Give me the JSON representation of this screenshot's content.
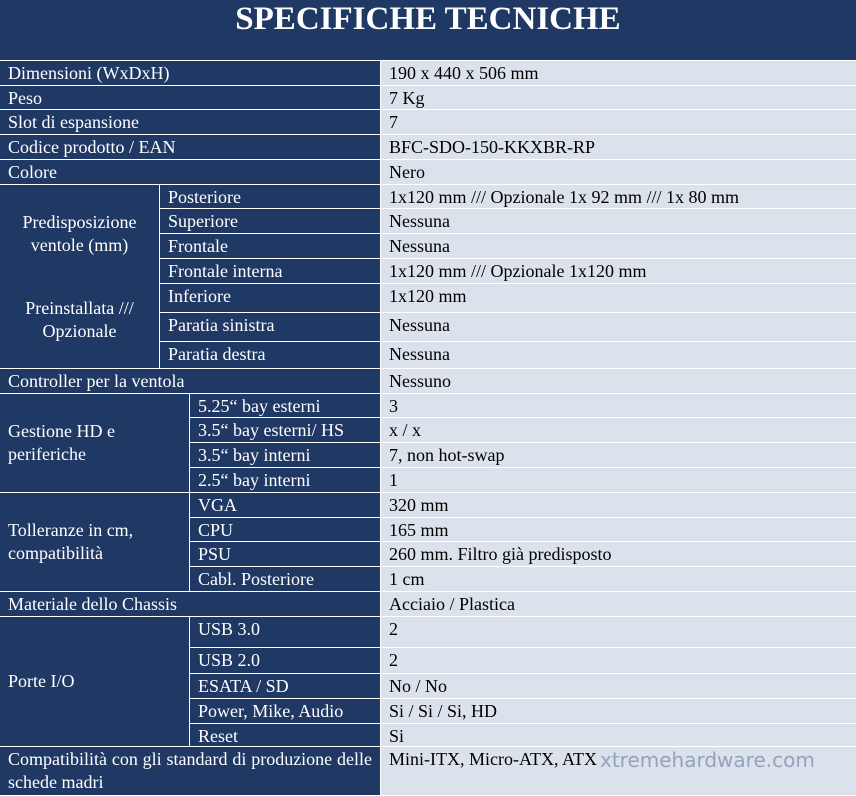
{
  "header": {
    "title": "SPECIFICHE TECNICHE"
  },
  "table": {
    "rows": [
      {
        "label": "Dimensioni (WxDxH)",
        "value": "190 x 440 x 506 mm"
      },
      {
        "label": "Peso",
        "value": "7 Kg"
      },
      {
        "label": "Slot di espansione",
        "value": "7"
      },
      {
        "label": "Codice prodotto / EAN",
        "value": "BFC-SDO-150-KKXBR-RP"
      },
      {
        "label": "Colore",
        "value": "Nero"
      },
      {
        "labels": [
          "Predisposizione ventole (mm)",
          "Preinstallata /// Opzionale"
        ],
        "items": [
          {
            "label": "Posteriore",
            "value": "1x120 mm /// Opzionale 1x 92 mm /// 1x 80 mm"
          },
          {
            "label": "Superiore",
            "value": "Nessuna"
          },
          {
            "label": "Frontale",
            "value": "Nessuna"
          },
          {
            "label": "Frontale interna",
            "value": "1x120 mm /// Opzionale 1x120 mm"
          },
          {
            "label": "Inferiore",
            "value": "1x120 mm"
          },
          {
            "label": "Paratia sinistra",
            "value": "Nessuna"
          },
          {
            "label": "Paratia destra",
            "value": "Nessuna"
          }
        ]
      },
      {
        "label": "Controller per la ventola",
        "value": "Nessuno"
      },
      {
        "labels": [
          "Gestione HD e periferiche"
        ],
        "items": [
          {
            "label": "5.25“ bay esterni",
            "value": "3"
          },
          {
            "label": "3.5“ bay esterni/ HS",
            "value": "x / x"
          },
          {
            "label": "3.5“ bay interni",
            "value": "7, non hot-swap"
          },
          {
            "label": "2.5“ bay interni",
            "value": "1"
          }
        ]
      },
      {
        "labels": [
          "Tolleranze in cm, compatibilità"
        ],
        "items": [
          {
            "label": "VGA",
            "value": "320 mm"
          },
          {
            "label": "CPU",
            "value": "165 mm"
          },
          {
            "label": "PSU",
            "value": "260 mm. Filtro già predisposto"
          },
          {
            "label": "Cabl. Posteriore",
            "value": "1 cm"
          }
        ]
      },
      {
        "label": "Materiale dello Chassis",
        "value": "Acciaio / Plastica"
      },
      {
        "labels": [
          "Porte I/O"
        ],
        "items": [
          {
            "label": "USB 3.0",
            "value": "2"
          },
          {
            "label": "USB 2.0",
            "value": "2"
          },
          {
            "label": "ESATA / SD",
            "value": "No / No"
          },
          {
            "label": "Power, Mike, Audio",
            "value": "Si / Si / Si, HD"
          },
          {
            "label": "Reset",
            "value": "Si"
          }
        ]
      },
      {
        "label": "Compatibilità con gli standard di produzione delle schede madri",
        "value": "Mini-ITX, Micro-ATX, ATX"
      }
    ]
  },
  "watermark": "xtremehardware.com"
}
